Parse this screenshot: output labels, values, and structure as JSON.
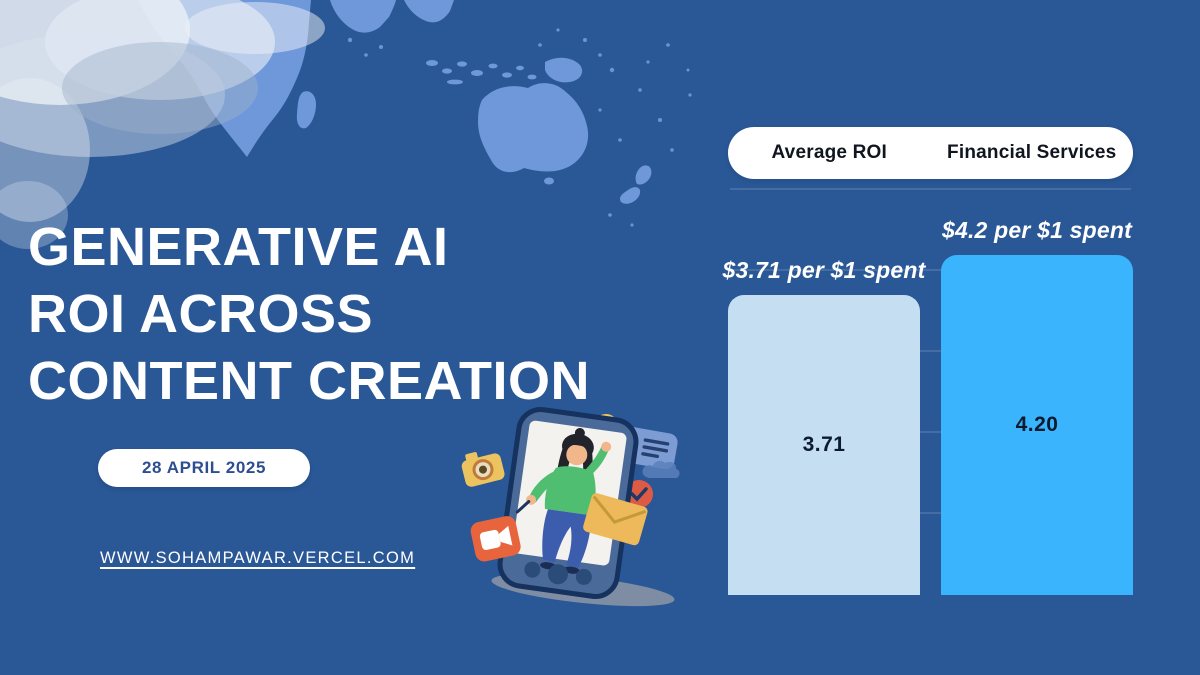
{
  "page": {
    "title_lines": [
      "GENERATIVE AI",
      "ROI ACROSS",
      "CONTENT CREATION"
    ],
    "date_badge": "28 APRIL 2025",
    "website": "WWW.SOHAMPAWAR.VERCEL.COM"
  },
  "chart_data": {
    "type": "bar",
    "categories": [
      "Average ROI",
      "Financial Services"
    ],
    "values": [
      3.71,
      4.2
    ],
    "bar_value_labels": [
      "3.71",
      "4.20"
    ],
    "annotations": [
      "$3.71 per $1 spent",
      "$4.2 per $1 spent"
    ],
    "legend_labels": [
      "Average ROI",
      "Financial Services"
    ],
    "legend_position": "top",
    "ylim": [
      0,
      5
    ],
    "grid": true,
    "bar_colors": [
      "#c5def1",
      "#39b4fd"
    ],
    "title": "",
    "xlabel": "",
    "ylabel": ""
  },
  "colors": {
    "background": "#2a5896",
    "map_land": "#6e98da",
    "bar_light": "#c5def1",
    "bar_accent": "#39b4fd",
    "badge_text": "#2d4f8f",
    "legend_text": "#10151f",
    "bar_value_text": "#0d1b2e",
    "text_light": "#ffffff"
  },
  "icons": [
    "world-map-background",
    "phone-illustration",
    "camera-icon",
    "video-camera-icon",
    "lightbulb-icon",
    "id-card-icon",
    "cloud-icon",
    "check-badge-icon",
    "envelope-icon"
  ]
}
